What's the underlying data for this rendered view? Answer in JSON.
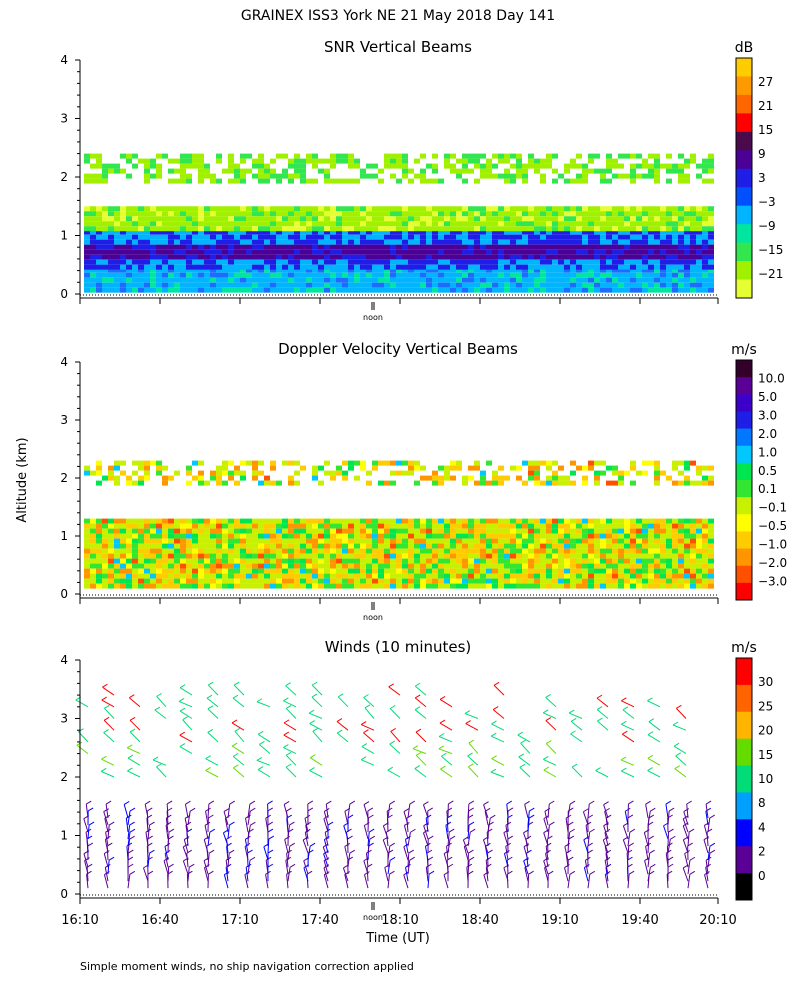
{
  "title": "GRAINEX ISS3 York NE  21 May 2018 Day 141",
  "footnote": "Simple moment winds, no ship navigation correction applied",
  "shared_ylabel": "Altitude (km)",
  "noon_label": "noon",
  "chart_data": [
    {
      "type": "heatmap",
      "title": "SNR Vertical Beams",
      "ylim": [
        0,
        4
      ],
      "yticks": [
        "0",
        "1",
        "2",
        "3",
        "4"
      ],
      "colorbar_unit": "dB",
      "colorbar_labels": [
        "27",
        "21",
        "15",
        "9",
        "3",
        "−3",
        "−9",
        "−15",
        "−21"
      ],
      "colorbar_colors": [
        "#ffcc00",
        "#ff9900",
        "#ff6600",
        "#ff0000",
        "#4b0a4b",
        "#4b0096",
        "#1e1ee6",
        "#0050ff",
        "#00b4ff",
        "#00e6a0",
        "#32e650",
        "#a0f000",
        "#e6ff32"
      ],
      "layers": [
        {
          "alt": [
            0.1,
            0.45
          ],
          "level": "-9 to 3 dB (blue)",
          "color": "#00b4ff"
        },
        {
          "alt": [
            0.5,
            1.1
          ],
          "level": "3 to 9 dB (purple)",
          "color": "#4b0096"
        },
        {
          "alt": [
            1.1,
            1.5
          ],
          "level": "-21 to -15 dB (green/yellow)",
          "color": "#a0f000"
        },
        {
          "alt": [
            1.9,
            2.4
          ],
          "level": "-21 to -15 dB",
          "color": "#a0f000"
        }
      ]
    },
    {
      "type": "heatmap",
      "title": "Doppler Velocity Vertical Beams",
      "ylim": [
        0,
        4
      ],
      "yticks": [
        "0",
        "1",
        "2",
        "3",
        "4"
      ],
      "colorbar_unit": "m/s",
      "colorbar_labels": [
        "10.0",
        "5.0",
        "3.0",
        "2.0",
        "1.0",
        "0.5",
        "0.1",
        "−0.1",
        "−0.5",
        "−1.0",
        "−2.0",
        "−3.0"
      ],
      "colorbar_colors": [
        "#320028",
        "#5a0096",
        "#3c00c8",
        "#1e1ee6",
        "#0078ff",
        "#00c8ff",
        "#00e650",
        "#32e632",
        "#c8f000",
        "#ffff00",
        "#ffcc00",
        "#ff9600",
        "#ff5000",
        "#ff0000"
      ],
      "layers": [
        {
          "alt": [
            0.1,
            1.3
          ],
          "level": "-0.5 to 0.5 m/s (mixed green/yellow/orange)",
          "color": "#c8f000"
        },
        {
          "alt": [
            1.9,
            2.3
          ],
          "level": "-0.1 to 0.1 m/s",
          "color": "#ffff00"
        }
      ]
    },
    {
      "type": "scatter",
      "title": "Winds (10 minutes)",
      "ylim": [
        0,
        4
      ],
      "yticks": [
        "0",
        "1",
        "2",
        "3",
        "4"
      ],
      "xlabel": "Time (UT)",
      "xticks": [
        "16:10",
        "16:40",
        "17:10",
        "17:40",
        "18:10",
        "18:40",
        "19:10",
        "19:40",
        "20:10"
      ],
      "colorbar_unit": "m/s",
      "colorbar_labels": [
        "30",
        "25",
        "20",
        "15",
        "10",
        "8",
        "4",
        "2",
        "0"
      ],
      "colorbar_colors": [
        "#ff0000",
        "#ff6400",
        "#ffb400",
        "#64dc00",
        "#00dc78",
        "#00a0ff",
        "#0000ff",
        "#5a0096",
        "#000000"
      ],
      "series": [
        {
          "alt": [
            0.1,
            1.4
          ],
          "speed": "2-8 m/s (purple/blue barbs)"
        },
        {
          "alt": [
            2.0,
            2.5
          ],
          "speed": "10-20 m/s (green barbs)"
        },
        {
          "alt": [
            2.6,
            3.5
          ],
          "speed": "20-30 m/s (green/red barbs)"
        }
      ]
    }
  ]
}
